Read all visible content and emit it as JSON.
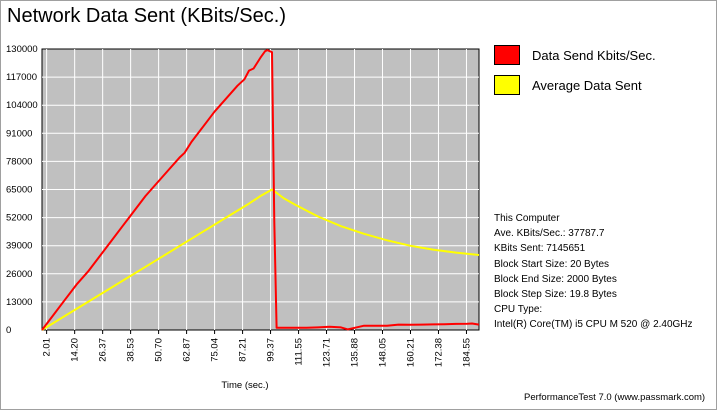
{
  "window": {
    "title": "Network Data Sent (KBits/Sec.)",
    "footer": "PerformanceTest 7.0 (www.passmark.com)"
  },
  "stats": {
    "heading": "This Computer",
    "ave": "Ave. KBits/Sec.: 37787.7",
    "sent": "KBits Sent: 7145651",
    "block_start": "Block Start Size: 20 Bytes",
    "block_end": "Block End Size: 2000 Bytes",
    "block_step": "Block Step Size: 19.8 Bytes",
    "cpu_label": "CPU Type:",
    "cpu_value": "Intel(R) Core(TM) i5 CPU M 520 @ 2.40GHz"
  },
  "colors": {
    "plot_background": "#c0c0c0",
    "series_send": "#ff0000",
    "series_average": "#ffff00"
  },
  "chart_data": {
    "type": "line",
    "title": "Network Data Sent (KBits/Sec.)",
    "xlabel": "Time (sec.)",
    "ylabel": "",
    "xlim": [
      0,
      190
    ],
    "ylim": [
      0,
      130000
    ],
    "grid": true,
    "legend_position": "right",
    "yticks": [
      0,
      13000,
      26000,
      39000,
      52000,
      65000,
      78000,
      91000,
      104000,
      117000,
      130000
    ],
    "ytick_labels": [
      "0",
      "13000",
      "26000",
      "39000",
      "52000",
      "65000",
      "78000",
      "91000",
      "104000",
      "117000",
      "130000"
    ],
    "xticks": [
      2.01,
      14.2,
      26.37,
      38.53,
      50.7,
      62.87,
      75.04,
      87.21,
      99.37,
      111.55,
      123.71,
      135.88,
      148.05,
      160.21,
      172.38,
      184.55
    ],
    "xtick_labels": [
      "2.01",
      "14.20",
      "26.37",
      "38.53",
      "50.70",
      "62.87",
      "75.04",
      "87.21",
      "99.37",
      "111.55",
      "123.71",
      "135.88",
      "148.05",
      "160.21",
      "172.38",
      "184.55"
    ],
    "series": [
      {
        "name": "Data Send Kbits/Sec.",
        "color": "#ff0000",
        "x": [
          0,
          5,
          10,
          15,
          20,
          25,
          30,
          35,
          40,
          45,
          50,
          55,
          60,
          62,
          65,
          70,
          75,
          80,
          85,
          88,
          90,
          92,
          95,
          97,
          98,
          100,
          101,
          102,
          105,
          110,
          115,
          120,
          125,
          130,
          133,
          136,
          140,
          145,
          150,
          155,
          160,
          165,
          170,
          175,
          180,
          185,
          187,
          190
        ],
        "y": [
          0,
          7000,
          14000,
          21000,
          27000,
          34000,
          41000,
          48000,
          55000,
          62000,
          68000,
          74000,
          80000,
          82000,
          87000,
          94000,
          101000,
          107000,
          113000,
          116000,
          120000,
          121000,
          126000,
          129000,
          129500,
          128500,
          50000,
          1000,
          1000,
          1000,
          1000,
          1200,
          1500,
          1200,
          300,
          1000,
          2000,
          2000,
          2000,
          2500,
          2400,
          2500,
          2600,
          2700,
          2800,
          2900,
          3000,
          2500
        ]
      },
      {
        "name": "Average Data Sent",
        "color": "#ffff00",
        "x": [
          0,
          10,
          20,
          30,
          40,
          50,
          60,
          70,
          80,
          90,
          95,
          100,
          105,
          110,
          120,
          130,
          140,
          150,
          160,
          170,
          180,
          190
        ],
        "y": [
          0,
          6500,
          13000,
          19500,
          26000,
          32500,
          39000,
          45500,
          52000,
          58500,
          62000,
          65000,
          61000,
          58000,
          52500,
          48000,
          44500,
          41500,
          39000,
          37200,
          35800,
          34700
        ]
      }
    ]
  }
}
